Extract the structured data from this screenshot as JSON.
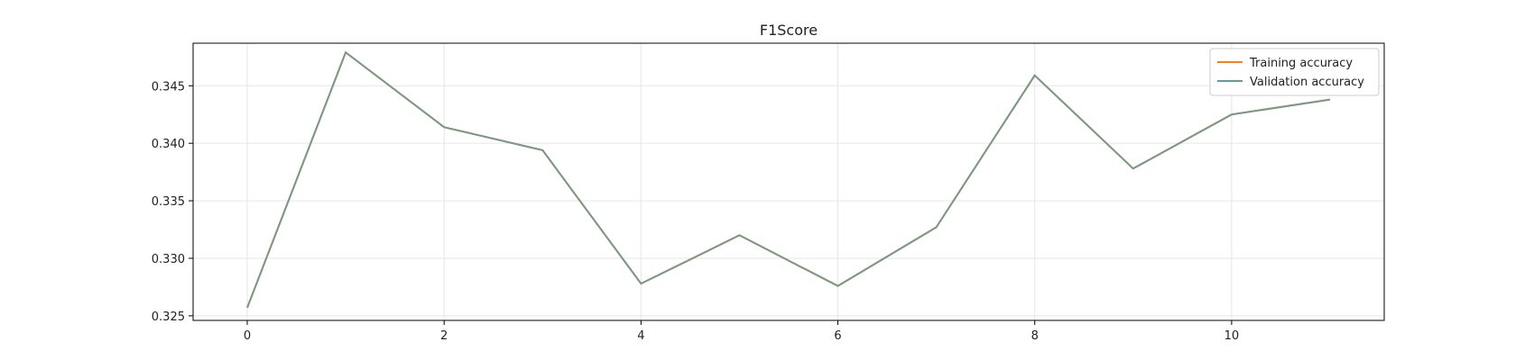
{
  "chart_data": {
    "type": "line",
    "title": "F1Score",
    "xlabel": "",
    "ylabel": "",
    "x": [
      0,
      1,
      2,
      3,
      4,
      5,
      6,
      7,
      8,
      9,
      10,
      11
    ],
    "xlim": [
      -0.55,
      11.55
    ],
    "ylim": [
      0.3246,
      0.3487
    ],
    "xticks": [
      0,
      2,
      4,
      6,
      8,
      10
    ],
    "yticks": [
      0.325,
      0.33,
      0.335,
      0.34,
      0.345
    ],
    "ytick_labels": [
      "0.325",
      "0.330",
      "0.335",
      "0.340",
      "0.345"
    ],
    "grid": true,
    "legend_position": "top-right",
    "series": [
      {
        "name": "Training accuracy",
        "color": "#ff7f0e",
        "values": [
          0.3257,
          0.3479,
          0.3414,
          0.3394,
          0.3278,
          0.332,
          0.3276,
          0.3327,
          0.3459,
          0.3378,
          0.3425,
          0.3438
        ]
      },
      {
        "name": "Validation accuracy",
        "color": "#5f9ea0",
        "values": [
          0.3257,
          0.3479,
          0.3414,
          0.3394,
          0.3278,
          0.332,
          0.3276,
          0.3327,
          0.3459,
          0.3378,
          0.3425,
          0.3438
        ]
      }
    ]
  }
}
